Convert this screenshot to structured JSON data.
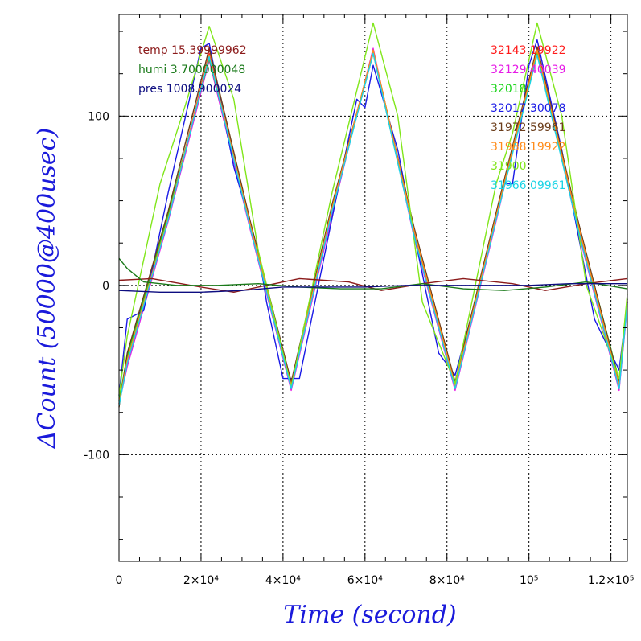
{
  "chart_data": {
    "type": "line",
    "title": "",
    "xlabel": "Time (second)",
    "ylabel": "ΔCount (50000@400usec)",
    "xlim": [
      0,
      124000
    ],
    "ylim": [
      -163,
      160
    ],
    "grid": true,
    "x_tick_labels": [
      {
        "value": 0,
        "label": "0"
      },
      {
        "value": 20000,
        "label": "2×10⁴"
      },
      {
        "value": 40000,
        "label": "4×10⁴"
      },
      {
        "value": 60000,
        "label": "6×10⁴"
      },
      {
        "value": 80000,
        "label": "8×10⁴"
      },
      {
        "value": 100000,
        "label": "10⁵"
      },
      {
        "value": 120000,
        "label": "1.2×10⁵"
      }
    ],
    "y_tick_labels": [
      {
        "value": 100,
        "label": "100"
      },
      {
        "value": 0,
        "label": "0"
      },
      {
        "value": -100,
        "label": "-100"
      }
    ],
    "legend_left": [
      {
        "text": "temp 15.39999962",
        "color": "#8b1a1a"
      },
      {
        "text": "humi 3.700000048",
        "color": "#1a7a1a"
      },
      {
        "text": "pres 1008.900024",
        "color": "#0d0d80"
      }
    ],
    "legend_right": [
      {
        "text": "32143.19922",
        "color": "#ff1a1a"
      },
      {
        "text": "32129.40039",
        "color": "#e61ae6"
      },
      {
        "text": "32018",
        "color": "#1ad41a"
      },
      {
        "text": "32017.30078",
        "color": "#1a1ae6"
      },
      {
        "text": "31972.59961",
        "color": "#6b3d1a"
      },
      {
        "text": "31988.19922",
        "color": "#ff8c1a"
      },
      {
        "text": "31900",
        "color": "#80e61a"
      },
      {
        "text": "31966.09961",
        "color": "#1ad4e6"
      }
    ],
    "series": [
      {
        "color": "#ff1a1a",
        "x": [
          0,
          2000,
          12000,
          22000,
          32000,
          42000,
          52000,
          62000,
          72000,
          82000,
          92000,
          102000,
          112000,
          122000,
          124000
        ],
        "y": [
          -70,
          -45,
          40,
          137,
          35,
          -60,
          45,
          137,
          30,
          -60,
          40,
          138,
          35,
          -60,
          -10
        ]
      },
      {
        "color": "#e61ae6",
        "x": [
          0,
          2000,
          12000,
          22000,
          32000,
          42000,
          52000,
          62000,
          72000,
          82000,
          92000,
          102000,
          112000,
          122000,
          124000
        ],
        "y": [
          -70,
          -48,
          38,
          133,
          33,
          -62,
          42,
          140,
          28,
          -62,
          38,
          140,
          32,
          -62,
          -12
        ]
      },
      {
        "color": "#1ad41a",
        "x": [
          0,
          2000,
          12000,
          22000,
          32000,
          42000,
          52000,
          62000,
          72000,
          82000,
          92000,
          102000,
          112000,
          122000,
          124000
        ],
        "y": [
          -68,
          -42,
          42,
          134,
          37,
          -58,
          47,
          138,
          33,
          -58,
          42,
          137,
          37,
          -56,
          -8
        ]
      },
      {
        "color": "#1a1ae6",
        "x": [
          0,
          2000,
          6000,
          12000,
          20000,
          22000,
          28000,
          34000,
          36000,
          40000,
          44000,
          52000,
          58000,
          60000,
          62000,
          68000,
          72000,
          78000,
          82000,
          88000,
          94000,
          96000,
          100000,
          102000,
          108000,
          112000,
          116000,
          122000,
          124000
        ],
        "y": [
          -65,
          -20,
          -15,
          55,
          140,
          143,
          70,
          20,
          -10,
          -55,
          -55,
          40,
          110,
          105,
          130,
          80,
          30,
          -40,
          -53,
          0,
          60,
          60,
          130,
          145,
          80,
          30,
          -20,
          -50,
          -10
        ]
      },
      {
        "color": "#6b3d1a",
        "x": [
          0,
          2000,
          12000,
          22000,
          32000,
          42000,
          52000,
          62000,
          72000,
          82000,
          92000,
          102000,
          112000,
          122000,
          124000
        ],
        "y": [
          -72,
          -40,
          44,
          140,
          38,
          -57,
          48,
          138,
          34,
          -57,
          43,
          141,
          38,
          -57,
          -8
        ]
      },
      {
        "color": "#ff8c1a",
        "x": [
          0,
          2000,
          12000,
          22000,
          32000,
          42000,
          52000,
          62000,
          72000,
          82000,
          92000,
          102000,
          112000,
          122000,
          124000
        ],
        "y": [
          -70,
          -44,
          40,
          136,
          36,
          -59,
          46,
          139,
          32,
          -59,
          41,
          139,
          36,
          -59,
          -9
        ]
      },
      {
        "color": "#80e61a",
        "x": [
          0,
          2000,
          10000,
          16000,
          22000,
          28000,
          34000,
          42000,
          52000,
          62000,
          68000,
          74000,
          82000,
          92000,
          96000,
          102000,
          108000,
          114000,
          122000,
          124000
        ],
        "y": [
          -65,
          -30,
          60,
          105,
          153,
          110,
          20,
          -60,
          55,
          155,
          100,
          -10,
          -58,
          60,
          90,
          155,
          100,
          0,
          -55,
          -5
        ]
      },
      {
        "color": "#1ad4e6",
        "x": [
          0,
          2000,
          12000,
          22000,
          32000,
          42000,
          52000,
          62000,
          72000,
          82000,
          92000,
          102000,
          112000,
          122000,
          124000
        ],
        "y": [
          -71,
          -46,
          39,
          135,
          34,
          -61,
          44,
          137,
          29,
          -61,
          39,
          136,
          33,
          -61,
          -11
        ]
      },
      {
        "color": "#8b1a1a",
        "x": [
          0,
          8000,
          20000,
          28000,
          36000,
          44000,
          56000,
          64000,
          74000,
          84000,
          96000,
          104000,
          114000,
          124000
        ],
        "y": [
          3,
          4,
          -1,
          -4,
          0,
          4,
          2,
          -3,
          1,
          4,
          1,
          -3,
          1,
          4
        ]
      },
      {
        "color": "#1a7a1a",
        "x": [
          0,
          2000,
          6000,
          14000,
          24000,
          34000,
          44000,
          54000,
          64000,
          74000,
          84000,
          94000,
          104000,
          114000,
          124000
        ],
        "y": [
          16,
          10,
          2,
          0,
          0,
          1,
          -1,
          -2,
          -2,
          1,
          -2,
          -3,
          -1,
          2,
          -2
        ]
      },
      {
        "color": "#0d0d80",
        "x": [
          0,
          10000,
          20000,
          30000,
          40000,
          50000,
          60000,
          70000,
          80000,
          90000,
          100000,
          110000,
          120000,
          124000
        ],
        "y": [
          -3,
          -4,
          -4,
          -3,
          -1,
          -1,
          -1,
          0,
          0,
          0,
          0,
          1,
          1,
          1
        ]
      }
    ]
  }
}
